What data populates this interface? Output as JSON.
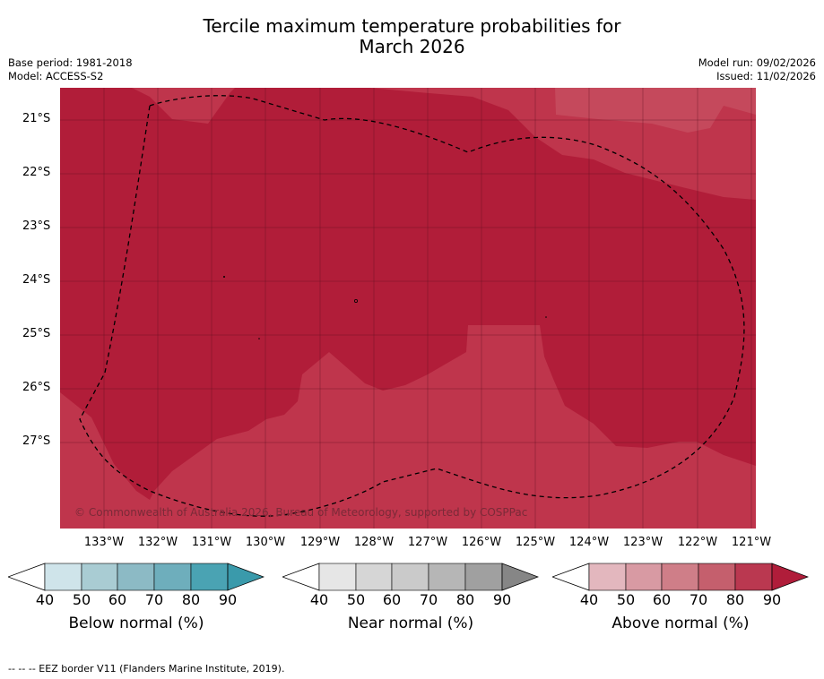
{
  "title_line1": "Tercile maximum temperature probabilities for",
  "title_line2": "March 2026",
  "base_period": "Base period: 1981-2018",
  "model": "Model: ACCESS-S2",
  "model_run": "Model run: 09/02/2026",
  "issued": "Issued: 11/02/2026",
  "copyright": "© Commonwealth of Australia 2026, Bureau of Meteorology, supported by COSPPac",
  "lat_labels": [
    "21°S",
    "22°S",
    "23°S",
    "24°S",
    "25°S",
    "26°S",
    "27°S"
  ],
  "lon_labels": [
    "133°W",
    "132°W",
    "131°W",
    "130°W",
    "129°W",
    "128°W",
    "127°W",
    "126°W",
    "125°W",
    "124°W",
    "123°W",
    "122°W",
    "121°W"
  ],
  "colorbars": [
    {
      "label": "Below normal (%)",
      "ticks": [
        "40",
        "50",
        "60",
        "70",
        "80",
        "90"
      ],
      "colors": [
        "#cfe4ea",
        "#a9ccd3",
        "#8cbac5",
        "#6eaebc",
        "#4aa3b3",
        "#3a9aab"
      ]
    },
    {
      "label": "Near normal (%)",
      "ticks": [
        "40",
        "50",
        "60",
        "70",
        "80",
        "90"
      ],
      "colors": [
        "#e6e6e6",
        "#d6d6d6",
        "#cacaca",
        "#b6b6b6",
        "#a0a0a0",
        "#868686"
      ]
    },
    {
      "label": "Above normal (%)",
      "ticks": [
        "40",
        "50",
        "60",
        "70",
        "80",
        "90"
      ],
      "colors": [
        "#e3b7be",
        "#d89aa3",
        "#cf7e88",
        "#c55f6d",
        "#ba3850",
        "#b01d3a"
      ]
    }
  ],
  "map_colors": {
    "above_70_80": "#bf354c",
    "above_80_90": "#b11d39",
    "above_60_70": "#c5495c"
  },
  "footer": "--  --  -- EEZ border V11 (Flanders Marine Institute, 2019)."
}
